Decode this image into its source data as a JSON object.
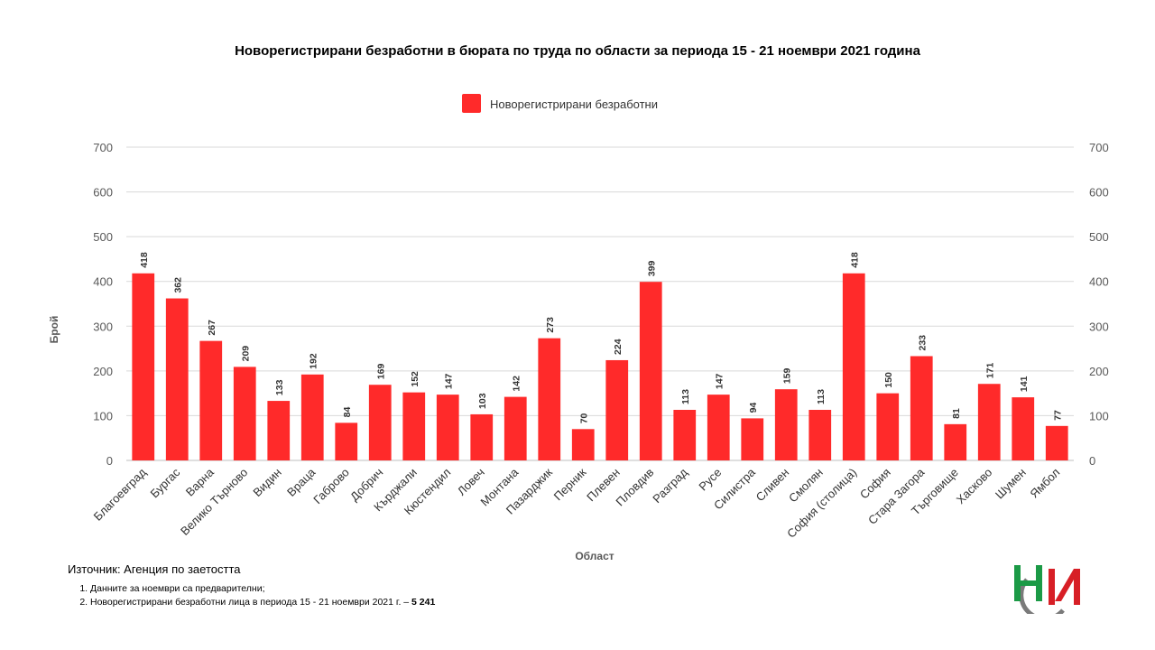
{
  "chart_data": {
    "type": "bar",
    "title": "Новорегистрирани безработни в бюрата по труда по области за периода 15 - 21 ноември 2021 година",
    "xlabel": "Област",
    "ylabel": "Брой",
    "ylim": [
      0,
      700
    ],
    "yticks": [
      "0",
      "100",
      "200",
      "300",
      "400",
      "500",
      "600",
      "700"
    ],
    "grid": true,
    "legend_position": "top",
    "series": [
      {
        "name": "Новорегистрирани безработни",
        "color": "#ff2a2a",
        "values": [
          418,
          362,
          267,
          209,
          133,
          192,
          84,
          169,
          152,
          147,
          103,
          142,
          273,
          70,
          224,
          399,
          113,
          147,
          94,
          159,
          113,
          418,
          150,
          233,
          81,
          171,
          141,
          77
        ]
      }
    ],
    "categories": [
      "Благоевград",
      "Бургас",
      "Варна",
      "Велико Търново",
      "Видин",
      "Враца",
      "Габрово",
      "Добрич",
      "Кърджали",
      "Кюстендил",
      "Ловеч",
      "Монтана",
      "Пазарджик",
      "Перник",
      "Плевен",
      "Пловдив",
      "Разград",
      "Русе",
      "Силистра",
      "Сливен",
      "Смолян",
      "София (столица)",
      "София",
      "Стара Загора",
      "Търговище",
      "Хасково",
      "Шумен",
      "Ямбол"
    ]
  },
  "source": "Източник: Агенция по заетостта",
  "notes": {
    "n1": "Данните за ноември  са предварителни;",
    "n2_text": "Новорегистрирани безработни лица в периода 15 - 21 ноември 2021 г. – ",
    "n2_bold": "5 241"
  },
  "logo": {
    "colors": [
      "#1b9a46",
      "#d71f26",
      "#7a7a7a"
    ]
  }
}
